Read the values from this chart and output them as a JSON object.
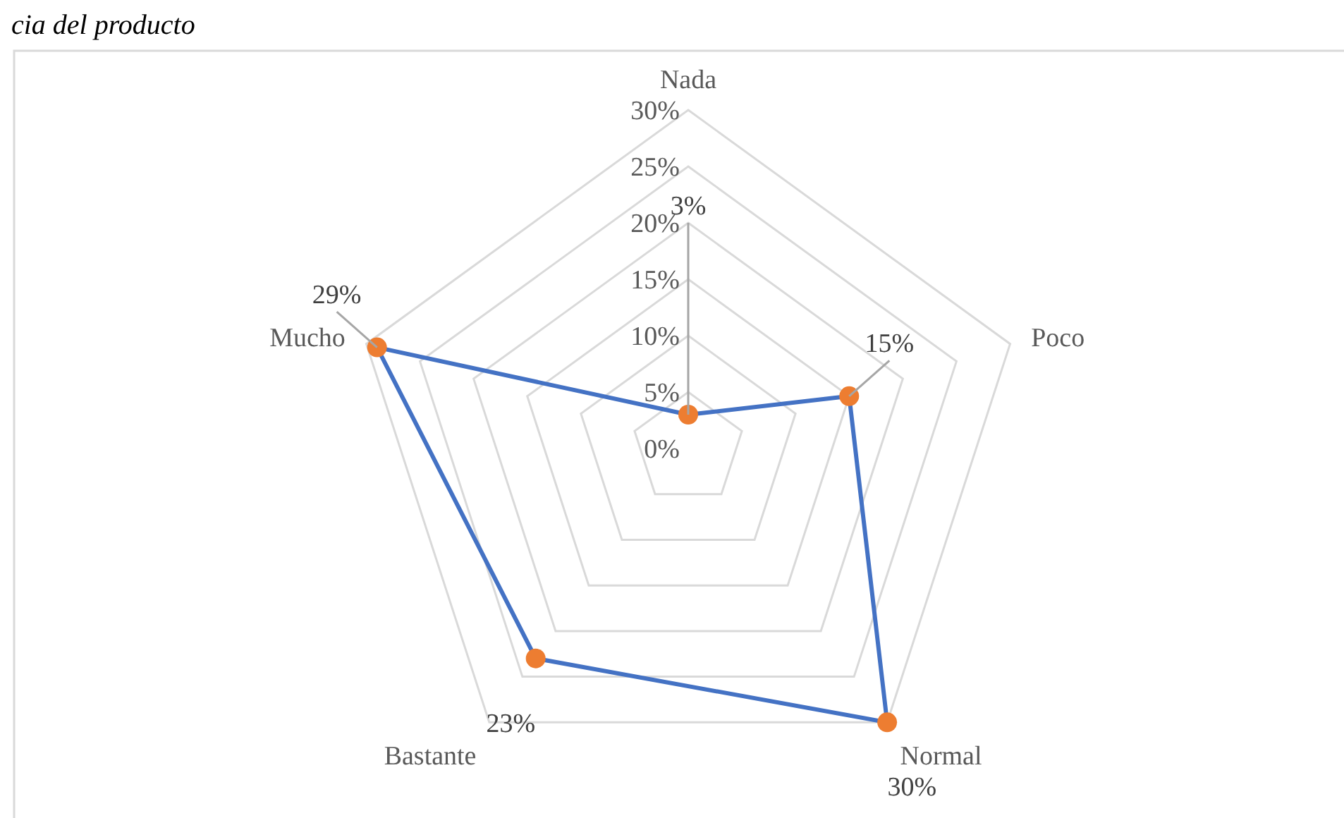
{
  "chart_data": {
    "type": "radar",
    "title": "cia del producto",
    "categories": [
      "Nada",
      "Poco",
      "Normal",
      "Bastante",
      "Mucho"
    ],
    "series": [
      {
        "color": "#4472c4",
        "values": [
          3,
          15,
          30,
          23,
          29
        ],
        "value_labels": [
          "3%",
          "15%",
          "30%",
          "23%",
          "29%"
        ]
      }
    ],
    "ylim": [
      0,
      30
    ],
    "yticks": [
      {
        "value": 0,
        "label": "0%"
      },
      {
        "value": 5,
        "label": "5%"
      },
      {
        "value": 10,
        "label": "10%"
      },
      {
        "value": 15,
        "label": "15%"
      },
      {
        "value": 20,
        "label": "20%"
      },
      {
        "value": 25,
        "label": "25%"
      },
      {
        "value": 30,
        "label": "30%"
      }
    ],
    "grid": true,
    "marker": "circle"
  }
}
